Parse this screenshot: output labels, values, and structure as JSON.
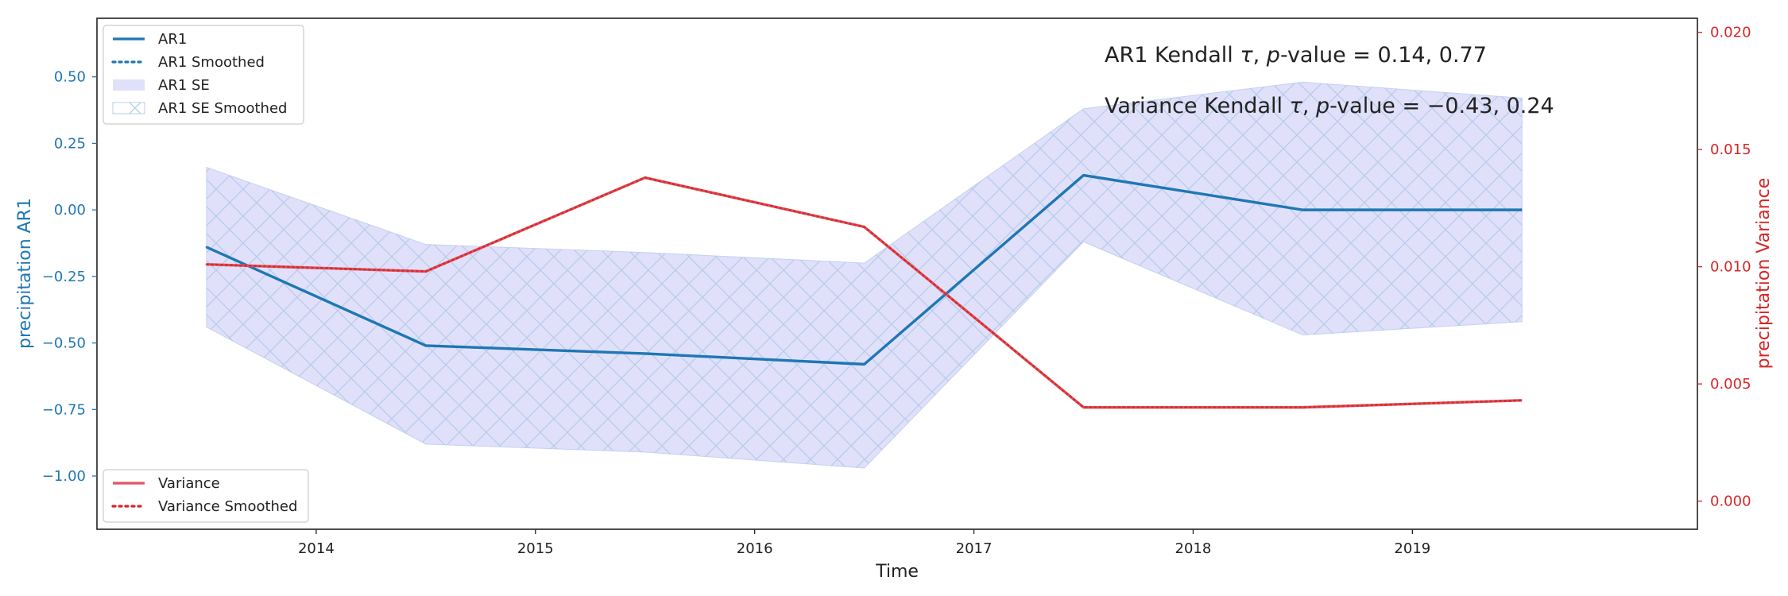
{
  "chart_data": {
    "type": "line",
    "title": "",
    "xlabel": "Time",
    "x": [
      2013.5,
      2014.5,
      2015.5,
      2016.5,
      2017.5,
      2018.5,
      2019.5
    ],
    "xlim": [
      2013.0,
      2020.3
    ],
    "x_ticks": [
      2014,
      2015,
      2016,
      2017,
      2018,
      2019
    ],
    "left_axis": {
      "ylabel": "precipitation AR1",
      "ylim": [
        -1.2,
        0.72
      ],
      "ticks": [
        -1.0,
        -0.75,
        -0.5,
        -0.25,
        0.0,
        0.25,
        0.5
      ],
      "tick_labels": [
        "−1.00",
        "−0.75",
        "−0.50",
        "−0.25",
        "0.00",
        "0.25",
        "0.50"
      ],
      "color": "#1f77b4"
    },
    "right_axis": {
      "ylabel": "precipitation Variance",
      "ylim": [
        -0.0012,
        0.0206
      ],
      "ticks": [
        0.0,
        0.005,
        0.01,
        0.015,
        0.02
      ],
      "tick_labels": [
        "0.000",
        "0.005",
        "0.010",
        "0.015",
        "0.020"
      ],
      "color": "#d62728"
    },
    "series": [
      {
        "name": "AR1",
        "axis": "left",
        "style": "solid",
        "color": "#1f77b4",
        "values": [
          -0.14,
          -0.51,
          -0.54,
          -0.58,
          0.13,
          0.0,
          0.0
        ]
      },
      {
        "name": "AR1 Smoothed",
        "axis": "left",
        "style": "dotted",
        "color": "#1f77b4",
        "values": [
          -0.14,
          -0.51,
          -0.54,
          -0.58,
          0.13,
          0.0,
          0.0
        ]
      },
      {
        "name": "Variance",
        "axis": "right",
        "style": "solid",
        "color": "#e05560",
        "values": [
          0.0101,
          0.0098,
          0.0138,
          0.0117,
          0.004,
          0.004,
          0.0043
        ]
      },
      {
        "name": "Variance Smoothed",
        "axis": "right",
        "style": "dotted",
        "color": "#d62728",
        "values": [
          0.0101,
          0.0098,
          0.0138,
          0.0117,
          0.004,
          0.004,
          0.0043
        ]
      }
    ],
    "bands": [
      {
        "name": "AR1 SE",
        "axis": "left",
        "color": "#e0e0fb",
        "lower": [
          -0.44,
          -0.88,
          -0.91,
          -0.97,
          -0.12,
          -0.47,
          -0.42
        ],
        "upper": [
          0.16,
          -0.13,
          -0.16,
          -0.2,
          0.38,
          0.48,
          0.42
        ]
      },
      {
        "name": "AR1 SE Smoothed",
        "axis": "left",
        "hatch": "x",
        "color": "#b8cce8",
        "lower": [
          -0.44,
          -0.88,
          -0.91,
          -0.97,
          -0.12,
          -0.47,
          -0.42
        ],
        "upper": [
          0.16,
          -0.13,
          -0.16,
          -0.2,
          0.38,
          0.48,
          0.42
        ]
      }
    ],
    "legends": [
      {
        "placement": "top-left",
        "entries": [
          "AR1",
          "AR1 Smoothed",
          "AR1 SE",
          "AR1 SE Smoothed"
        ]
      },
      {
        "placement": "bottom-left",
        "entries": [
          "Variance",
          "Variance Smoothed"
        ]
      }
    ],
    "annotations": [
      {
        "prefix": "AR1 Kendall ",
        "tau": "τ",
        "mid": ",  ",
        "p": "p",
        "suffix": "-value = 0.14, 0.77"
      },
      {
        "prefix": "Variance Kendall ",
        "tau": "τ",
        "mid": ",  ",
        "p": "p",
        "suffix": "-value = −0.43, 0.24"
      }
    ]
  }
}
